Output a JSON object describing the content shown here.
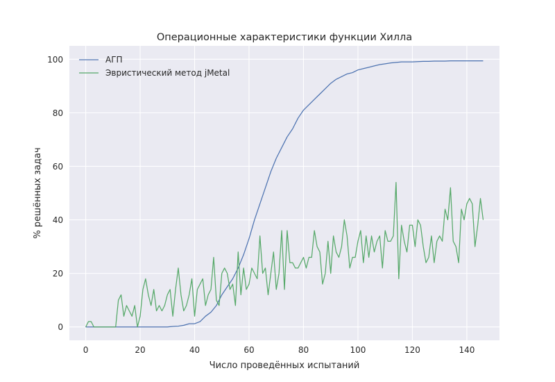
{
  "chart_data": {
    "type": "line",
    "title": "Операционные характеристики функции Хилла",
    "xlabel": "Число проведённых испытаний",
    "ylabel": "% решённых задач",
    "xlim": [
      -6,
      152
    ],
    "ylim": [
      -5,
      105
    ],
    "xticks": [
      0,
      20,
      40,
      60,
      80,
      100,
      120,
      140
    ],
    "yticks": [
      0,
      20,
      40,
      60,
      80,
      100
    ],
    "grid": true,
    "legend_position": "top-left",
    "series": [
      {
        "name": "АГП",
        "color": "#4c72b0",
        "x": [
          0,
          2,
          4,
          6,
          8,
          10,
          12,
          14,
          16,
          18,
          20,
          22,
          24,
          26,
          28,
          30,
          32,
          34,
          36,
          38,
          40,
          42,
          44,
          46,
          48,
          50,
          52,
          54,
          56,
          58,
          60,
          62,
          64,
          66,
          68,
          70,
          72,
          74,
          76,
          78,
          80,
          82,
          84,
          86,
          88,
          90,
          92,
          94,
          96,
          98,
          100,
          102,
          104,
          106,
          108,
          110,
          112,
          114,
          116,
          118,
          120,
          122,
          124,
          126,
          128,
          130,
          132,
          134,
          136,
          138,
          140,
          142,
          144,
          146
        ],
        "y": [
          0,
          0,
          0,
          0,
          0,
          0,
          0,
          0,
          0,
          0,
          0,
          0,
          0,
          0,
          0,
          0,
          0.2,
          0.3,
          0.6,
          1.2,
          1.2,
          2,
          4,
          5.5,
          8,
          12,
          15,
          18,
          22,
          27,
          33,
          40,
          46,
          52,
          58,
          63,
          67,
          71,
          74,
          78,
          81,
          83,
          85,
          87,
          89,
          91,
          92.5,
          93.5,
          94.5,
          95,
          96,
          96.5,
          97,
          97.5,
          98,
          98.3,
          98.6,
          98.8,
          99,
          99,
          99,
          99.1,
          99.2,
          99.2,
          99.3,
          99.3,
          99.3,
          99.4,
          99.4,
          99.4,
          99.4,
          99.4,
          99.4,
          99.4
        ]
      },
      {
        "name": "Эвристический метод jMetal",
        "color": "#55a868",
        "x": [
          0,
          1,
          2,
          3,
          4,
          5,
          6,
          7,
          8,
          9,
          10,
          11,
          12,
          13,
          14,
          15,
          16,
          17,
          18,
          19,
          20,
          21,
          22,
          23,
          24,
          25,
          26,
          27,
          28,
          29,
          30,
          31,
          32,
          33,
          34,
          35,
          36,
          37,
          38,
          39,
          40,
          41,
          42,
          43,
          44,
          45,
          46,
          47,
          48,
          49,
          50,
          51,
          52,
          53,
          54,
          55,
          56,
          57,
          58,
          59,
          60,
          61,
          62,
          63,
          64,
          65,
          66,
          67,
          68,
          69,
          70,
          71,
          72,
          73,
          74,
          75,
          76,
          77,
          78,
          79,
          80,
          81,
          82,
          83,
          84,
          85,
          86,
          87,
          88,
          89,
          90,
          91,
          92,
          93,
          94,
          95,
          96,
          97,
          98,
          99,
          100,
          101,
          102,
          103,
          104,
          105,
          106,
          107,
          108,
          109,
          110,
          111,
          112,
          113,
          114,
          115,
          116,
          117,
          118,
          119,
          120,
          121,
          122,
          123,
          124,
          125,
          126,
          127,
          128,
          129,
          130,
          131,
          132,
          133,
          134,
          135,
          136,
          137,
          138,
          139,
          140,
          141,
          142,
          143,
          144,
          145,
          146
        ],
        "y": [
          0,
          2,
          2,
          0,
          0,
          0,
          0,
          0,
          0,
          0,
          0,
          0,
          10,
          12,
          4,
          8,
          6,
          4,
          8,
          0,
          4,
          14,
          18,
          12,
          8,
          14,
          6,
          8,
          6,
          8,
          12,
          14,
          4,
          14,
          22,
          12,
          6,
          8,
          12,
          18,
          4,
          14,
          16,
          18,
          8,
          12,
          14,
          26,
          10,
          8,
          20,
          22,
          20,
          14,
          16,
          8,
          28,
          12,
          22,
          14,
          16,
          22,
          20,
          18,
          34,
          20,
          22,
          12,
          20,
          28,
          14,
          20,
          36,
          14,
          36,
          24,
          24,
          22,
          22,
          24,
          26,
          22,
          26,
          26,
          36,
          30,
          28,
          16,
          20,
          32,
          20,
          34,
          28,
          26,
          30,
          40,
          34,
          22,
          26,
          26,
          32,
          36,
          24,
          34,
          26,
          34,
          28,
          32,
          34,
          22,
          36,
          32,
          32,
          34,
          54,
          18,
          38,
          32,
          28,
          38,
          38,
          30,
          40,
          38,
          30,
          24,
          26,
          34,
          24,
          32,
          34,
          32,
          44,
          40,
          52,
          32,
          30,
          24,
          44,
          40,
          46,
          48,
          46,
          30,
          38,
          48,
          40
        ]
      }
    ]
  }
}
